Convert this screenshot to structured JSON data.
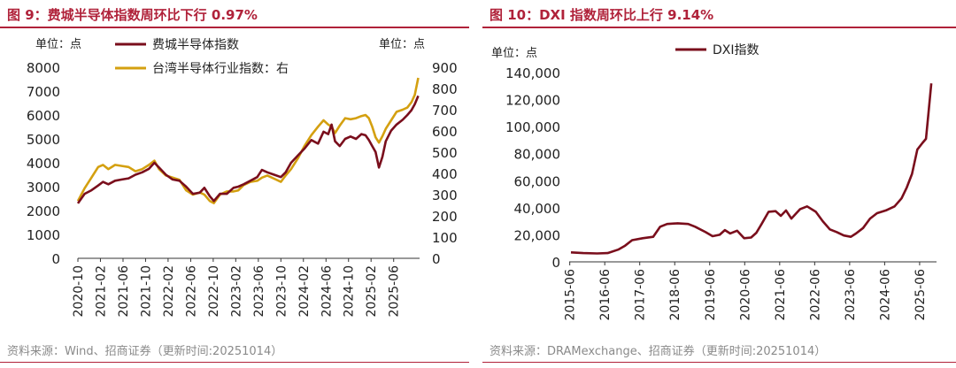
{
  "left": {
    "title": "图 9：费城半导体指数周环比下行 0.97%",
    "source": "资料来源：Wind、招商证券（更新时间:20251014）",
    "chart_data": {
      "type": "line",
      "unit_left": "单位：点",
      "unit_right": "单位：点",
      "legend_right_suffix": "右",
      "y_left": {
        "min": 0,
        "max": 8000,
        "ticks": [
          0,
          1000,
          2000,
          3000,
          4000,
          5000,
          6000,
          7000,
          8000
        ]
      },
      "y_right": {
        "min": 0,
        "max": 900,
        "ticks": [
          0,
          100,
          200,
          300,
          400,
          500,
          600,
          700,
          800,
          900
        ]
      },
      "x_range": [
        2020.75,
        2025.8
      ],
      "x_ticks": [
        {
          "label": "2020-10",
          "x": 2020.75
        },
        {
          "label": "2021-02",
          "x": 2021.083
        },
        {
          "label": "2021-06",
          "x": 2021.417
        },
        {
          "label": "2021-10",
          "x": 2021.75
        },
        {
          "label": "2022-02",
          "x": 2022.083
        },
        {
          "label": "2022-06",
          "x": 2022.417
        },
        {
          "label": "2022-10",
          "x": 2022.75
        },
        {
          "label": "2023-02",
          "x": 2023.083
        },
        {
          "label": "2023-06",
          "x": 2023.417
        },
        {
          "label": "2023-10",
          "x": 2023.75
        },
        {
          "label": "2024-02",
          "x": 2024.083
        },
        {
          "label": "2024-06",
          "x": 2024.417
        },
        {
          "label": "2024-10",
          "x": 2024.75
        },
        {
          "label": "2025-02",
          "x": 2025.083
        },
        {
          "label": "2025-06",
          "x": 2025.417
        }
      ],
      "series": [
        {
          "name": "费城半导体指数",
          "axis": "left",
          "color": "#7A0E1C",
          "points": [
            [
              2020.75,
              2300
            ],
            [
              2020.85,
              2700
            ],
            [
              2020.95,
              2850
            ],
            [
              2021.05,
              3050
            ],
            [
              2021.12,
              3200
            ],
            [
              2021.2,
              3100
            ],
            [
              2021.3,
              3250
            ],
            [
              2021.4,
              3300
            ],
            [
              2021.5,
              3350
            ],
            [
              2021.6,
              3500
            ],
            [
              2021.7,
              3600
            ],
            [
              2021.8,
              3750
            ],
            [
              2021.88,
              4000
            ],
            [
              2021.95,
              3800
            ],
            [
              2022.05,
              3500
            ],
            [
              2022.15,
              3300
            ],
            [
              2022.25,
              3250
            ],
            [
              2022.35,
              3000
            ],
            [
              2022.45,
              2700
            ],
            [
              2022.55,
              2750
            ],
            [
              2022.62,
              2950
            ],
            [
              2022.7,
              2600
            ],
            [
              2022.76,
              2400
            ],
            [
              2022.85,
              2700
            ],
            [
              2022.95,
              2700
            ],
            [
              2023.05,
              2950
            ],
            [
              2023.12,
              3000
            ],
            [
              2023.2,
              3100
            ],
            [
              2023.3,
              3250
            ],
            [
              2023.4,
              3400
            ],
            [
              2023.47,
              3700
            ],
            [
              2023.55,
              3600
            ],
            [
              2023.65,
              3500
            ],
            [
              2023.75,
              3400
            ],
            [
              2023.82,
              3600
            ],
            [
              2023.9,
              4000
            ],
            [
              2024.0,
              4300
            ],
            [
              2024.1,
              4600
            ],
            [
              2024.2,
              4950
            ],
            [
              2024.3,
              4800
            ],
            [
              2024.38,
              5300
            ],
            [
              2024.45,
              5200
            ],
            [
              2024.5,
              5600
            ],
            [
              2024.55,
              4900
            ],
            [
              2024.62,
              4700
            ],
            [
              2024.7,
              5000
            ],
            [
              2024.78,
              5100
            ],
            [
              2024.86,
              5000
            ],
            [
              2024.94,
              5200
            ],
            [
              2025.0,
              5150
            ],
            [
              2025.05,
              4950
            ],
            [
              2025.1,
              4700
            ],
            [
              2025.15,
              4450
            ],
            [
              2025.2,
              3800
            ],
            [
              2025.25,
              4250
            ],
            [
              2025.3,
              4900
            ],
            [
              2025.38,
              5350
            ],
            [
              2025.46,
              5600
            ],
            [
              2025.55,
              5800
            ],
            [
              2025.62,
              6000
            ],
            [
              2025.68,
              6200
            ],
            [
              2025.73,
              6450
            ],
            [
              2025.78,
              6800
            ]
          ]
        },
        {
          "name": "台湾半导体行业指数：右",
          "axis": "right",
          "color": "#D4A010",
          "points": [
            [
              2020.75,
              270
            ],
            [
              2020.85,
              330
            ],
            [
              2020.95,
              380
            ],
            [
              2021.05,
              430
            ],
            [
              2021.12,
              440
            ],
            [
              2021.2,
              420
            ],
            [
              2021.3,
              440
            ],
            [
              2021.4,
              435
            ],
            [
              2021.5,
              430
            ],
            [
              2021.6,
              410
            ],
            [
              2021.7,
              420
            ],
            [
              2021.8,
              440
            ],
            [
              2021.88,
              460
            ],
            [
              2021.95,
              420
            ],
            [
              2022.05,
              390
            ],
            [
              2022.15,
              380
            ],
            [
              2022.25,
              370
            ],
            [
              2022.35,
              320
            ],
            [
              2022.45,
              300
            ],
            [
              2022.55,
              310
            ],
            [
              2022.62,
              300
            ],
            [
              2022.7,
              270
            ],
            [
              2022.76,
              260
            ],
            [
              2022.85,
              300
            ],
            [
              2022.95,
              315
            ],
            [
              2023.05,
              315
            ],
            [
              2023.12,
              320
            ],
            [
              2023.2,
              345
            ],
            [
              2023.3,
              360
            ],
            [
              2023.4,
              365
            ],
            [
              2023.47,
              380
            ],
            [
              2023.55,
              390
            ],
            [
              2023.65,
              375
            ],
            [
              2023.75,
              360
            ],
            [
              2023.82,
              390
            ],
            [
              2023.9,
              420
            ],
            [
              2024.0,
              470
            ],
            [
              2024.1,
              530
            ],
            [
              2024.2,
              580
            ],
            [
              2024.3,
              620
            ],
            [
              2024.38,
              650
            ],
            [
              2024.45,
              630
            ],
            [
              2024.5,
              620
            ],
            [
              2024.55,
              590
            ],
            [
              2024.62,
              625
            ],
            [
              2024.7,
              660
            ],
            [
              2024.78,
              655
            ],
            [
              2024.86,
              660
            ],
            [
              2024.94,
              670
            ],
            [
              2025.0,
              675
            ],
            [
              2025.05,
              660
            ],
            [
              2025.1,
              620
            ],
            [
              2025.15,
              570
            ],
            [
              2025.2,
              545
            ],
            [
              2025.25,
              575
            ],
            [
              2025.3,
              610
            ],
            [
              2025.38,
              650
            ],
            [
              2025.46,
              690
            ],
            [
              2025.55,
              700
            ],
            [
              2025.62,
              710
            ],
            [
              2025.68,
              735
            ],
            [
              2025.73,
              770
            ],
            [
              2025.78,
              850
            ]
          ]
        }
      ]
    }
  },
  "right": {
    "title": "图 10：DXI 指数周环比上行 9.14%",
    "source": "资料来源：DRAMexchange、招商证券（更新时间:20251014）",
    "chart_data": {
      "type": "line",
      "unit_left": "单位：点",
      "y_left": {
        "min": 0,
        "max": 140000,
        "ticks": [
          0,
          20000,
          40000,
          60000,
          80000,
          100000,
          120000,
          140000
        ],
        "tick_labels": [
          "0",
          "20,000",
          "40,000",
          "60,000",
          "80,000",
          "100,000",
          "120,000",
          "140,000"
        ]
      },
      "x_range": [
        2015.4,
        2025.9
      ],
      "x_ticks": [
        {
          "label": "2015-06",
          "x": 2015.417
        },
        {
          "label": "2016-06",
          "x": 2016.417
        },
        {
          "label": "2017-06",
          "x": 2017.417
        },
        {
          "label": "2018-06",
          "x": 2018.417
        },
        {
          "label": "2019-06",
          "x": 2019.417
        },
        {
          "label": "2020-06",
          "x": 2020.417
        },
        {
          "label": "2021-06",
          "x": 2021.417
        },
        {
          "label": "2022-06",
          "x": 2022.417
        },
        {
          "label": "2023-06",
          "x": 2023.417
        },
        {
          "label": "2024-06",
          "x": 2024.417
        },
        {
          "label": "2025-06",
          "x": 2025.417
        }
      ],
      "series": [
        {
          "name": "DXI指数",
          "axis": "left",
          "color": "#7A0E1C",
          "points": [
            [
              2015.45,
              7000
            ],
            [
              2015.8,
              6500
            ],
            [
              2016.2,
              6200
            ],
            [
              2016.5,
              6500
            ],
            [
              2016.8,
              9000
            ],
            [
              2017.0,
              12000
            ],
            [
              2017.2,
              16000
            ],
            [
              2017.5,
              17500
            ],
            [
              2017.8,
              18500
            ],
            [
              2018.0,
              26000
            ],
            [
              2018.2,
              28000
            ],
            [
              2018.5,
              28500
            ],
            [
              2018.8,
              28000
            ],
            [
              2019.0,
              26000
            ],
            [
              2019.3,
              22000
            ],
            [
              2019.5,
              19000
            ],
            [
              2019.7,
              20000
            ],
            [
              2019.85,
              23500
            ],
            [
              2020.0,
              21000
            ],
            [
              2020.2,
              23000
            ],
            [
              2020.4,
              17500
            ],
            [
              2020.6,
              18000
            ],
            [
              2020.75,
              21500
            ],
            [
              2020.9,
              28000
            ],
            [
              2021.1,
              37000
            ],
            [
              2021.3,
              37500
            ],
            [
              2021.45,
              34000
            ],
            [
              2021.6,
              38000
            ],
            [
              2021.75,
              32000
            ],
            [
              2022.0,
              39000
            ],
            [
              2022.2,
              41000
            ],
            [
              2022.45,
              37000
            ],
            [
              2022.65,
              30000
            ],
            [
              2022.85,
              24000
            ],
            [
              2023.05,
              22000
            ],
            [
              2023.25,
              19500
            ],
            [
              2023.45,
              18500
            ],
            [
              2023.6,
              21000
            ],
            [
              2023.8,
              25000
            ],
            [
              2024.0,
              32000
            ],
            [
              2024.2,
              36000
            ],
            [
              2024.45,
              38000
            ],
            [
              2024.7,
              41000
            ],
            [
              2024.9,
              47000
            ],
            [
              2025.05,
              55000
            ],
            [
              2025.2,
              65000
            ],
            [
              2025.35,
              83000
            ],
            [
              2025.5,
              88000
            ],
            [
              2025.6,
              91000
            ],
            [
              2025.67,
              110000
            ],
            [
              2025.75,
              132000
            ]
          ]
        }
      ]
    }
  }
}
